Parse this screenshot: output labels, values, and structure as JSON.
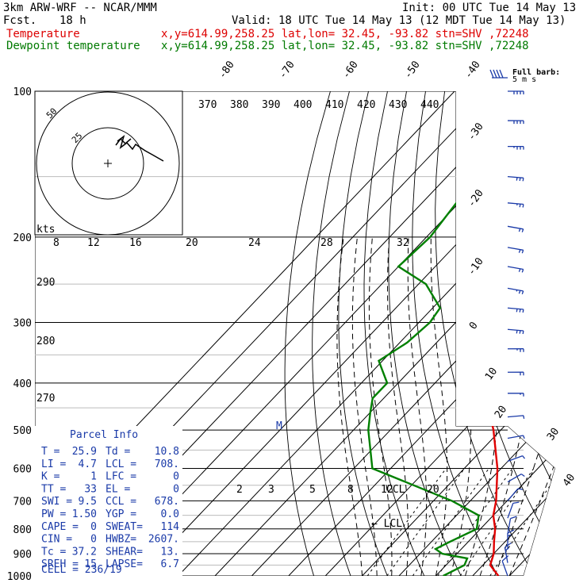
{
  "header": {
    "model": "3km ARW-WRF -- NCAR/MMM",
    "init": "Init: 00 UTC Tue 14 May 13",
    "fcst_label": "Fcst.",
    "fcst_value": "18 h",
    "valid": "Valid: 18 UTC Tue 14 May 13 (12 MDT Tue 14 May 13)",
    "temp_label": "Temperature",
    "temp_info": "x,y=614.99,258.25   lat,lon= 32.45, -93.82  stn=SHV ,72248",
    "dew_label": "Dewpoint temperature",
    "dew_info": "x,y=614.99,258.25   lat,lon= 32.45, -93.82  stn=SHV ,72248"
  },
  "barb_legend": {
    "title": "Full barb:",
    "unit": "5 m s"
  },
  "hodograph": {
    "unit": "kts",
    "ring_labels": [
      "25",
      "50"
    ]
  },
  "parcel_info": {
    "title": "Parcel Info",
    "rows": [
      [
        "T  =",
        "25.9",
        "Td =",
        "10.8"
      ],
      [
        "LI =",
        "4.7",
        "LCL =",
        "708."
      ],
      [
        "K  =",
        "1",
        "LFC =",
        "0"
      ],
      [
        "TT =",
        "33",
        "EL =",
        "0"
      ],
      [
        "SWI =",
        "9.5",
        "CCL =",
        "678."
      ],
      [
        "PW =",
        "1.50",
        "YGP =",
        "0.0"
      ],
      [
        "CAPE =",
        "0",
        "SWEAT=",
        "114"
      ],
      [
        "CIN =",
        "0",
        "HWBZ=",
        "2607."
      ],
      [
        "Tc =",
        "37.2",
        "SHEAR=",
        "13."
      ],
      [
        "SREH =",
        "15",
        "LAPSE=",
        "6.7"
      ]
    ],
    "cell": "CELL = 236/19"
  },
  "annotations": {
    "ccl": "CCL",
    "lcl": "LCL",
    "m": "M"
  },
  "chart_data": {
    "type": "line",
    "pressure_axis_labels": [
      "100",
      "200",
      "300",
      "400",
      "500",
      "600",
      "700",
      "800",
      "900",
      "1000"
    ],
    "pressure_levels": [
      100,
      200,
      300,
      400,
      500,
      600,
      700,
      800,
      900,
      1000
    ],
    "isotherm_labels": [
      "-80",
      "-70",
      "-60",
      "-50",
      "-40",
      "-30",
      "-20",
      "-10",
      "0",
      "10",
      "20",
      "30",
      "40"
    ],
    "isotherm_values": [
      -80,
      -70,
      -60,
      -50,
      -40,
      -30,
      -20,
      -10,
      0,
      10,
      20,
      30,
      40
    ],
    "theta_labels": [
      "370",
      "380",
      "390",
      "400",
      "410",
      "420",
      "430",
      "440"
    ],
    "dry_adiabat_labels": [
      "290",
      "280",
      "270"
    ],
    "moist_adiabat_labels": [
      "8",
      "12",
      "16",
      "20",
      "24",
      "28",
      "32"
    ],
    "mixing_ratio_labels": [
      "2",
      "3",
      "5",
      "8",
      "12",
      "20"
    ],
    "series": [
      {
        "name": "Temperature",
        "color": "#e00000",
        "points": [
          [
            100,
            -58
          ],
          [
            130,
            -61
          ],
          [
            150,
            -62
          ],
          [
            180,
            -60
          ],
          [
            200,
            -58
          ],
          [
            250,
            -52
          ],
          [
            300,
            -44
          ],
          [
            400,
            -27
          ],
          [
            500,
            -12
          ],
          [
            600,
            -1
          ],
          [
            700,
            7
          ],
          [
            750,
            10
          ],
          [
            800,
            14
          ],
          [
            850,
            17
          ],
          [
            900,
            20
          ],
          [
            950,
            22
          ],
          [
            1000,
            27
          ]
        ]
      },
      {
        "name": "Dewpoint temperature",
        "color": "#008000",
        "points": [
          [
            100,
            -84
          ],
          [
            150,
            -82
          ],
          [
            200,
            -79
          ],
          [
            230,
            -80
          ],
          [
            250,
            -68
          ],
          [
            280,
            -58
          ],
          [
            300,
            -57
          ],
          [
            330,
            -58
          ],
          [
            360,
            -61
          ],
          [
            400,
            -53
          ],
          [
            430,
            -53
          ],
          [
            460,
            -50
          ],
          [
            500,
            -46
          ],
          [
            600,
            -35
          ],
          [
            700,
            -5
          ],
          [
            750,
            6
          ],
          [
            800,
            9
          ],
          [
            850,
            5
          ],
          [
            880,
            3
          ],
          [
            900,
            6
          ],
          [
            920,
            14
          ],
          [
            950,
            15
          ],
          [
            1000,
            12
          ]
        ]
      }
    ],
    "wind_barbs": [
      {
        "p": 100,
        "dir": 270,
        "spd": 40
      },
      {
        "p": 115,
        "dir": 270,
        "spd": 40
      },
      {
        "p": 130,
        "dir": 270,
        "spd": 35
      },
      {
        "p": 150,
        "dir": 275,
        "spd": 30
      },
      {
        "p": 170,
        "dir": 275,
        "spd": 25
      },
      {
        "p": 190,
        "dir": 280,
        "spd": 20
      },
      {
        "p": 210,
        "dir": 280,
        "spd": 20
      },
      {
        "p": 230,
        "dir": 280,
        "spd": 20
      },
      {
        "p": 255,
        "dir": 280,
        "spd": 25
      },
      {
        "p": 280,
        "dir": 275,
        "spd": 30
      },
      {
        "p": 310,
        "dir": 275,
        "spd": 30
      },
      {
        "p": 340,
        "dir": 270,
        "spd": 25
      },
      {
        "p": 380,
        "dir": 270,
        "spd": 20
      },
      {
        "p": 420,
        "dir": 270,
        "spd": 15
      },
      {
        "p": 470,
        "dir": 265,
        "spd": 10
      },
      {
        "p": 520,
        "dir": 260,
        "spd": 10
      },
      {
        "p": 580,
        "dir": 250,
        "spd": 10
      },
      {
        "p": 640,
        "dir": 240,
        "spd": 10
      },
      {
        "p": 700,
        "dir": 220,
        "spd": 10
      },
      {
        "p": 760,
        "dir": 200,
        "spd": 10
      },
      {
        "p": 820,
        "dir": 190,
        "spd": 10
      },
      {
        "p": 880,
        "dir": 180,
        "spd": 15
      },
      {
        "p": 940,
        "dir": 170,
        "spd": 15
      },
      {
        "p": 1000,
        "dir": 160,
        "spd": 10
      }
    ]
  }
}
